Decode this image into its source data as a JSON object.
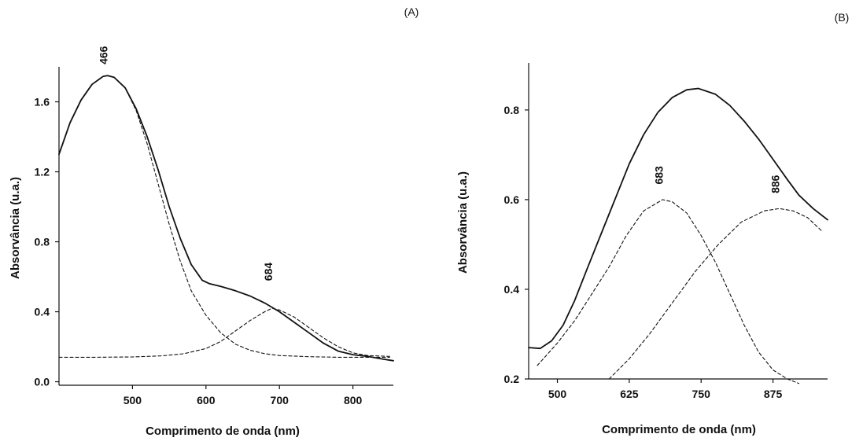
{
  "chart_data": [
    {
      "panel_label": "(A)",
      "type": "line",
      "xlabel": "Comprimento de onda (nm)",
      "ylabel": "Absorvância (u.a.)",
      "xlim": [
        400,
        855
      ],
      "ylim": [
        -0.02,
        1.8
      ],
      "xticks": [
        500,
        600,
        700,
        800
      ],
      "yticks": [
        0.0,
        0.4,
        0.8,
        1.2,
        1.6
      ],
      "ytick_labels": [
        "0.0",
        "0.4",
        "0.8",
        "1.2",
        "1.6"
      ],
      "annotations": [
        {
          "text": "466",
          "x": 466,
          "y": 1.76
        },
        {
          "text": "684",
          "x": 690,
          "y": 0.46
        }
      ],
      "series": [
        {
          "style": "solid",
          "x": [
            400,
            415,
            430,
            445,
            460,
            466,
            475,
            490,
            505,
            520,
            535,
            550,
            565,
            580,
            595,
            605,
            620,
            640,
            660,
            680,
            700,
            720,
            740,
            760,
            780,
            800,
            820,
            840,
            855
          ],
          "y": [
            1.3,
            1.48,
            1.61,
            1.7,
            1.745,
            1.75,
            1.74,
            1.68,
            1.56,
            1.4,
            1.21,
            1.0,
            0.82,
            0.67,
            0.58,
            0.56,
            0.545,
            0.52,
            0.49,
            0.45,
            0.4,
            0.34,
            0.28,
            0.22,
            0.175,
            0.155,
            0.145,
            0.13,
            0.12
          ]
        },
        {
          "style": "dashed",
          "x": [
            400,
            415,
            430,
            445,
            460,
            466,
            475,
            490,
            505,
            520,
            535,
            550,
            565,
            580,
            600,
            620,
            640,
            660,
            680,
            700,
            740,
            780,
            820,
            850
          ],
          "y": [
            1.3,
            1.48,
            1.61,
            1.7,
            1.745,
            1.75,
            1.74,
            1.68,
            1.55,
            1.36,
            1.13,
            0.9,
            0.69,
            0.52,
            0.38,
            0.28,
            0.215,
            0.18,
            0.16,
            0.15,
            0.143,
            0.14,
            0.14,
            0.14
          ]
        },
        {
          "style": "dashed",
          "x": [
            400,
            450,
            500,
            540,
            570,
            600,
            620,
            640,
            660,
            680,
            690,
            700,
            720,
            740,
            760,
            780,
            800,
            820,
            850
          ],
          "y": [
            0.14,
            0.14,
            0.142,
            0.148,
            0.16,
            0.19,
            0.23,
            0.29,
            0.35,
            0.4,
            0.42,
            0.41,
            0.37,
            0.31,
            0.25,
            0.2,
            0.165,
            0.15,
            0.145
          ]
        }
      ]
    },
    {
      "panel_label": "(B)",
      "type": "line",
      "xlabel": "Comprimento de onda (nm)",
      "ylabel": "Absorvância (u.a.)",
      "xlim": [
        450,
        970
      ],
      "ylim": [
        0.2,
        0.905
      ],
      "xticks": [
        500,
        625,
        750,
        875
      ],
      "yticks": [
        0.2,
        0.4,
        0.6,
        0.8
      ],
      "ytick_labels": [
        "0.2",
        "0.4",
        "0.6",
        "0.8"
      ],
      "annotations": [
        {
          "text": "683",
          "x": 683,
          "y": 0.62
        },
        {
          "text": "886",
          "x": 886,
          "y": 0.6
        }
      ],
      "series": [
        {
          "style": "solid",
          "x": [
            450,
            470,
            490,
            510,
            530,
            550,
            575,
            600,
            625,
            650,
            675,
            700,
            725,
            745,
            775,
            800,
            825,
            850,
            875,
            900,
            920,
            945,
            970
          ],
          "y": [
            0.27,
            0.268,
            0.285,
            0.32,
            0.375,
            0.44,
            0.52,
            0.6,
            0.68,
            0.745,
            0.795,
            0.828,
            0.845,
            0.848,
            0.835,
            0.81,
            0.775,
            0.735,
            0.69,
            0.645,
            0.61,
            0.58,
            0.555
          ]
        },
        {
          "style": "dashed",
          "x": [
            465,
            500,
            530,
            560,
            590,
            620,
            650,
            683,
            700,
            725,
            750,
            775,
            800,
            825,
            850,
            875,
            900,
            920
          ],
          "y": [
            0.23,
            0.28,
            0.33,
            0.39,
            0.45,
            0.52,
            0.575,
            0.6,
            0.595,
            0.57,
            0.52,
            0.46,
            0.39,
            0.32,
            0.26,
            0.22,
            0.2,
            0.19
          ]
        },
        {
          "style": "dashed",
          "x": [
            590,
            625,
            660,
            700,
            740,
            780,
            820,
            860,
            886,
            910,
            935,
            960
          ],
          "y": [
            0.2,
            0.245,
            0.3,
            0.37,
            0.44,
            0.5,
            0.55,
            0.575,
            0.58,
            0.575,
            0.56,
            0.53
          ]
        }
      ]
    }
  ]
}
